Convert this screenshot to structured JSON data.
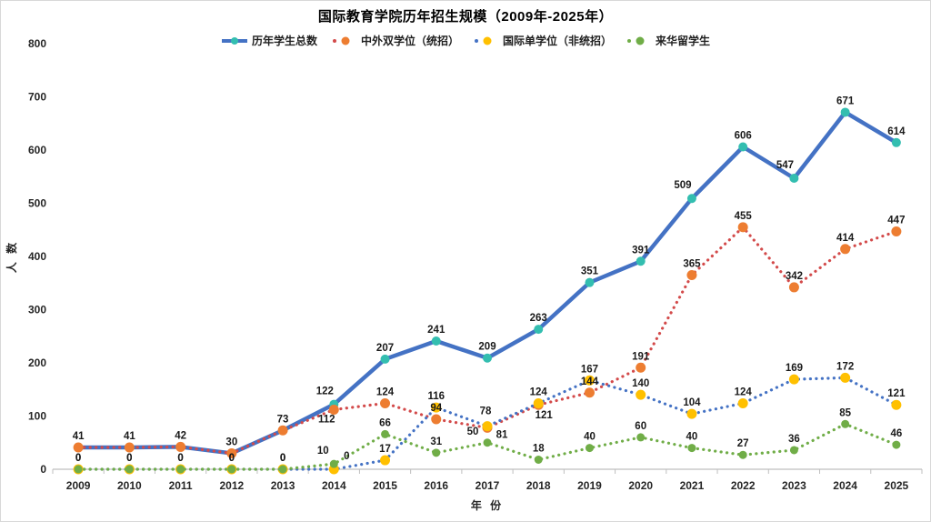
{
  "title": "国际教育学院历年招生规模（2009年-2025年）",
  "chart_data": {
    "type": "line",
    "title": "国际教育学院历年招生规模（2009年-2025年）",
    "x": [
      "2009",
      "2010",
      "2011",
      "2012",
      "2013",
      "2014",
      "2015",
      "2016",
      "2017",
      "2018",
      "2019",
      "2020",
      "2021",
      "2022",
      "2023",
      "2024",
      "2025"
    ],
    "xlabel": "年 份",
    "ylabel": "人 数",
    "ylim": [
      0,
      800
    ],
    "ytick_step": 100,
    "grid": false,
    "legend_position": "top-center",
    "axis_color": "#BFBFBF",
    "series": [
      {
        "id": "total-students",
        "name": "历年学生总数",
        "line_style": "solid",
        "line_color": "#4472C4",
        "marker_color": "#33BEB0",
        "values": [
          41,
          41,
          42,
          30,
          73,
          122,
          207,
          241,
          209,
          263,
          351,
          391,
          509,
          606,
          547,
          671,
          614
        ]
      },
      {
        "id": "dual-degree",
        "name": "中外双学位（统招）",
        "line_style": "dotted",
        "line_color": "#D34A4A",
        "marker_color": "#ED7D31",
        "values": [
          41,
          41,
          42,
          30,
          73,
          112,
          124,
          94,
          78,
          121,
          144,
          191,
          365,
          455,
          342,
          414,
          447
        ]
      },
      {
        "id": "single-degree",
        "name": "国际单学位（非统招）",
        "line_style": "dotted",
        "line_color": "#4472C4",
        "marker_color": "#FFC000",
        "values": [
          0,
          0,
          0,
          0,
          0,
          0,
          17,
          116,
          81,
          124,
          167,
          140,
          104,
          124,
          169,
          172,
          121
        ]
      },
      {
        "id": "study-in-china",
        "name": "来华留学生",
        "line_style": "dotted",
        "line_color": "#70AD47",
        "marker_color": "#70AD47",
        "values": [
          0,
          0,
          0,
          0,
          0,
          10,
          66,
          31,
          50,
          18,
          40,
          60,
          40,
          27,
          36,
          85,
          46
        ]
      }
    ]
  }
}
